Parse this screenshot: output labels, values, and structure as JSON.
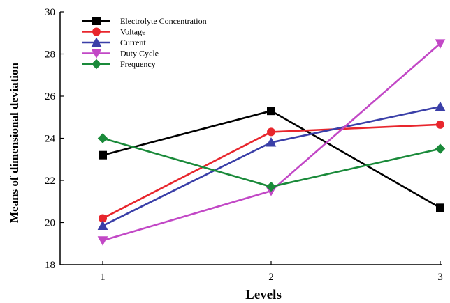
{
  "chart_data": {
    "type": "line",
    "title": "",
    "xlabel": "Levels",
    "ylabel": "Means of dimensional deviation",
    "x": [
      1,
      2,
      3
    ],
    "xticks": [
      "1",
      "2",
      "3"
    ],
    "ylim": [
      18,
      30
    ],
    "yticks": [
      "18",
      "20",
      "22",
      "24",
      "26",
      "28",
      "30"
    ],
    "grid": false,
    "legend_position": "top-left",
    "series": [
      {
        "name": "Electrolyte Concentration",
        "values": [
          23.2,
          25.3,
          20.7
        ],
        "color": "#000000",
        "marker": "square"
      },
      {
        "name": "Voltage",
        "values": [
          20.2,
          24.3,
          24.65
        ],
        "color": "#e8262d",
        "marker": "circle"
      },
      {
        "name": "Current",
        "values": [
          19.85,
          23.8,
          25.5
        ],
        "color": "#3a3fa8",
        "marker": "triangle-up"
      },
      {
        "name": "Duty Cycle",
        "values": [
          19.15,
          21.5,
          28.5
        ],
        "color": "#c248c6",
        "marker": "triangle-down"
      },
      {
        "name": "Frequency",
        "values": [
          24.0,
          21.7,
          23.5
        ],
        "color": "#1a8a3a",
        "marker": "diamond"
      }
    ]
  }
}
